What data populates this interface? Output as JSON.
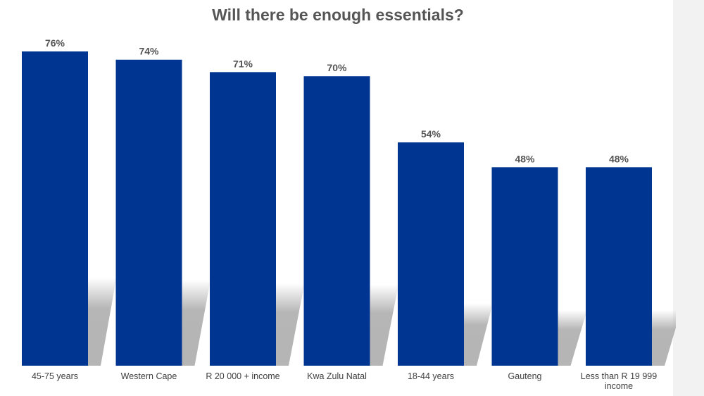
{
  "chart_data": {
    "type": "bar",
    "title": "Will there be enough essentials?",
    "categories": [
      "45-75 years",
      "Western Cape",
      "R 20 000 + income",
      "Kwa Zulu Natal",
      "18-44 years",
      "Gauteng",
      "Less than R 19 999 income"
    ],
    "values": [
      76,
      74,
      71,
      70,
      54,
      48,
      48
    ],
    "value_labels": [
      "76%",
      "74%",
      "71%",
      "70%",
      "54%",
      "48%",
      "48%"
    ],
    "ylim": [
      0,
      80
    ],
    "grid": false,
    "legend": "none",
    "bar_color": "#003591",
    "label_color": "#555555"
  }
}
